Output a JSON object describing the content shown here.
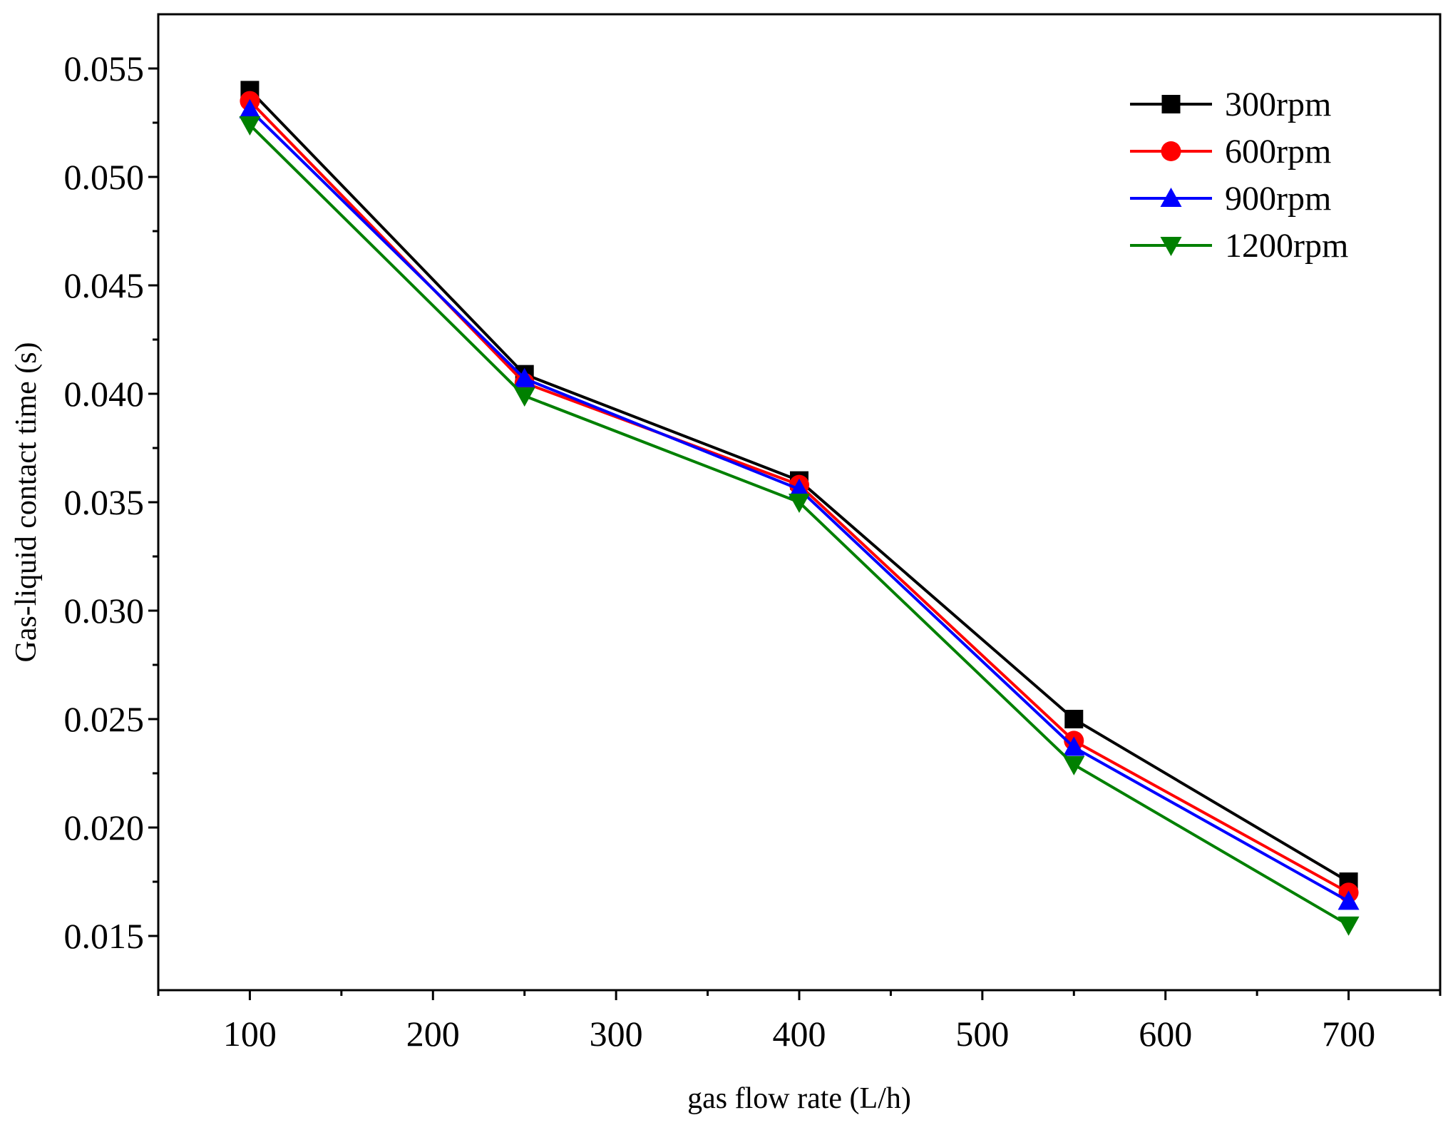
{
  "chart_data": {
    "type": "line",
    "title": "",
    "xlabel": "gas flow rate (L/h)",
    "ylabel": "Gas-liquid contact time (s)",
    "xlim": [
      50,
      750
    ],
    "ylim": [
      0.0125,
      0.0575
    ],
    "x_ticks": [
      100,
      200,
      300,
      400,
      500,
      600,
      700
    ],
    "x_tick_labels": [
      "100",
      "200",
      "300",
      "400",
      "500",
      "600",
      "700"
    ],
    "y_ticks": [
      0.015,
      0.02,
      0.025,
      0.03,
      0.035,
      0.04,
      0.045,
      0.05,
      0.055
    ],
    "y_tick_labels": [
      "0.015",
      "0.020",
      "0.025",
      "0.030",
      "0.035",
      "0.040",
      "0.045",
      "0.050",
      "0.055"
    ],
    "x": [
      100,
      250,
      400,
      550,
      700
    ],
    "grid": false,
    "legend_position": "top-right",
    "series": [
      {
        "name": "300rpm",
        "color": "#000000",
        "marker": "square",
        "values": [
          0.054,
          0.0409,
          0.036,
          0.025,
          0.0175
        ]
      },
      {
        "name": "600rpm",
        "color": "#ff0000",
        "marker": "circle",
        "values": [
          0.0535,
          0.0405,
          0.0358,
          0.024,
          0.017
        ]
      },
      {
        "name": "900rpm",
        "color": "#0000ff",
        "marker": "triangle-up",
        "values": [
          0.0531,
          0.0407,
          0.0356,
          0.0237,
          0.0166
        ]
      },
      {
        "name": "1200rpm",
        "color": "#008000",
        "marker": "triangle-down",
        "values": [
          0.0524,
          0.0399,
          0.035,
          0.0229,
          0.0155
        ]
      }
    ]
  }
}
